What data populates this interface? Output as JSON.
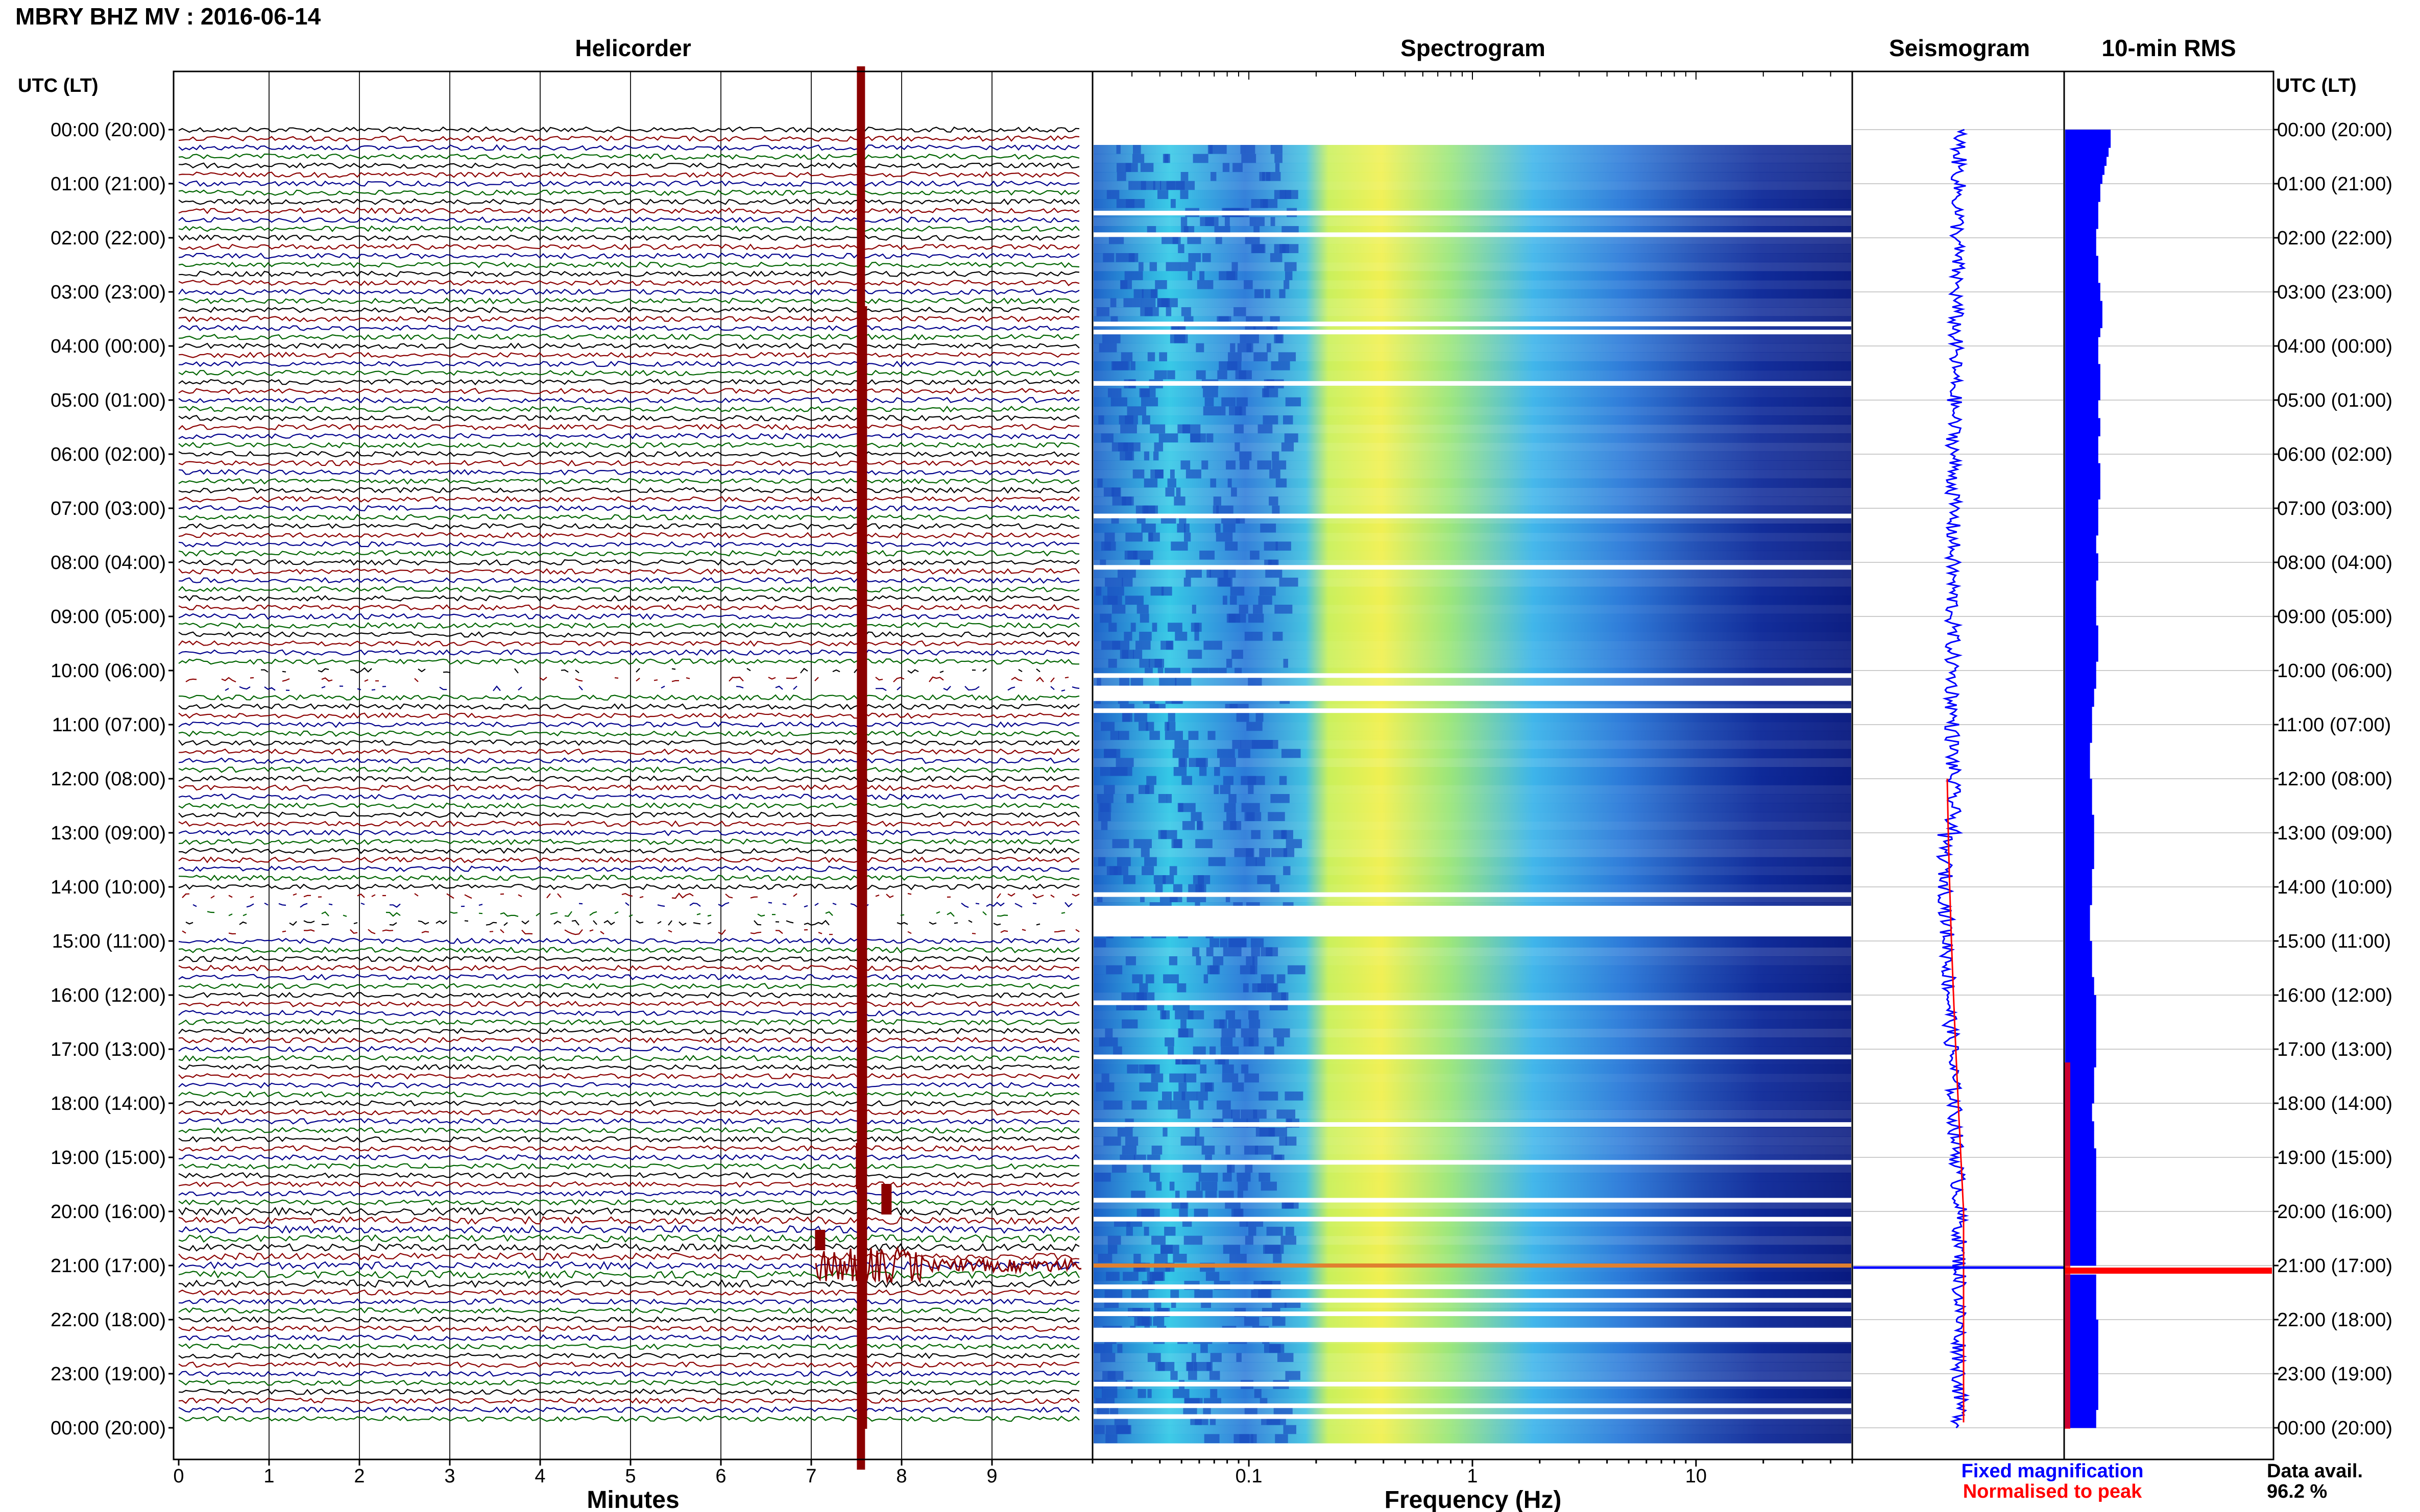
{
  "header": {
    "title": "MBRY BHZ MV : 2016-06-14"
  },
  "panels": {
    "helicorder": "Helicorder",
    "spectrogram": "Spectrogram",
    "seismogram": "Seismogram",
    "rms": "10-min RMS"
  },
  "axis_header_left": "UTC (LT)",
  "axis_header_right": "UTC (LT)",
  "time_labels": [
    "00:00 (20:00)",
    "01:00 (21:00)",
    "02:00 (22:00)",
    "03:00 (23:00)",
    "04:00 (00:00)",
    "05:00 (01:00)",
    "06:00 (02:00)",
    "07:00 (03:00)",
    "08:00 (04:00)",
    "09:00 (05:00)",
    "10:00 (06:00)",
    "11:00 (07:00)",
    "12:00 (08:00)",
    "13:00 (09:00)",
    "14:00 (10:00)",
    "15:00 (11:00)",
    "16:00 (12:00)",
    "17:00 (13:00)",
    "18:00 (14:00)",
    "19:00 (15:00)",
    "20:00 (16:00)",
    "21:00 (17:00)",
    "22:00 (18:00)",
    "23:00 (19:00)",
    "00:00 (20:00)"
  ],
  "x_labels": {
    "helicorder": "Minutes",
    "spectrogram": "Frequency (Hz)"
  },
  "minute_ticks": [
    "0",
    "1",
    "2",
    "3",
    "4",
    "5",
    "6",
    "7",
    "8",
    "9"
  ],
  "freq_ticks": [
    "0.1",
    "1",
    "10"
  ],
  "legend": {
    "fixed": "Fixed magnification",
    "normalised": "Normalised to peak",
    "fixed_color": "#0000ff",
    "normalised_color": "#ff0000"
  },
  "data_avail": {
    "label": "Data avail.",
    "value": "96.2 %"
  },
  "colors": {
    "trace_cycle": [
      "#000000",
      "#8b0000",
      "#00008b",
      "#006400"
    ],
    "event": "#8b0000",
    "spectro_low": "#0a1e8c",
    "spectro_mid": "#33c8e6",
    "spectro_high": "#f0f050",
    "rms_bar": "#0000ff",
    "rms_peak": "#ff0000"
  },
  "chart_data": [
    {
      "type": "line",
      "name": "Helicorder",
      "xlabel": "Minutes",
      "xlim": [
        0,
        10
      ],
      "ylabel": "UTC (LT)",
      "rows": 144,
      "row_minutes": 10,
      "event": {
        "time_utc": "20:57",
        "minute_in_row": 7.55,
        "note": "large event trace"
      },
      "gaps_utc": [
        "10:00-10:20",
        "14:10-14:50"
      ]
    },
    {
      "type": "heatmap",
      "name": "Spectrogram",
      "xlabel": "Frequency (Hz)",
      "xscale": "log",
      "xlim": [
        0.02,
        50
      ],
      "xticks": [
        0.1,
        1,
        10
      ],
      "peak_band_hz": [
        0.2,
        0.5
      ],
      "gaps_utc": [
        "14:10-14:50"
      ]
    },
    {
      "type": "line",
      "name": "Seismogram",
      "series": [
        {
          "name": "Fixed magnification",
          "color": "#0000ff"
        },
        {
          "name": "Normalised to peak",
          "color": "#ff0000"
        }
      ],
      "spike_utc": "21:00"
    },
    {
      "type": "bar",
      "name": "10-min RMS",
      "orientation": "horizontal",
      "peak_utc": "21:00",
      "values_relative": [
        0.22,
        0.22,
        0.21,
        0.2,
        0.19,
        0.18,
        0.17,
        0.17,
        0.16,
        0.16,
        0.16,
        0.15,
        0.15,
        0.15,
        0.16,
        0.16,
        0.16,
        0.17,
        0.17,
        0.18,
        0.18,
        0.18,
        0.17,
        0.16,
        0.16,
        0.16,
        0.17,
        0.17,
        0.17,
        0.17,
        0.16,
        0.16,
        0.17,
        0.17,
        0.16,
        0.16,
        0.16,
        0.17,
        0.17,
        0.17,
        0.17,
        0.16,
        0.16,
        0.16,
        0.16,
        0.15,
        0.15,
        0.16,
        0.16,
        0.16,
        0.15,
        0.15,
        0.15,
        0.15,
        0.15,
        0.16,
        0.16,
        0.16,
        0.16,
        0.15,
        0.15,
        0.15,
        0.14,
        0.14,
        0.13,
        0.13,
        0.13,
        0.13,
        0.12,
        0.12,
        0.12,
        0.12,
        0.13,
        0.13,
        0.13,
        0.13,
        0.14,
        0.14,
        0.14,
        0.14,
        0.14,
        0.14,
        0.13,
        0.13,
        0.13,
        0.13,
        0.12,
        0.12,
        0.12,
        0.12,
        0.13,
        0.13,
        0.13,
        0.13,
        0.14,
        0.14,
        0.15,
        0.15,
        0.15,
        0.15,
        0.15,
        0.15,
        0.15,
        0.15,
        0.14,
        0.14,
        0.14,
        0.14,
        0.13,
        0.13,
        0.14,
        0.14,
        0.14,
        0.15,
        0.15,
        0.15,
        0.15,
        0.15,
        0.15,
        0.15,
        0.15,
        0.15,
        0.15,
        0.15,
        0.15,
        0.15,
        1.0,
        0.15,
        0.15,
        0.15,
        0.15,
        0.15,
        0.16,
        0.16,
        0.16,
        0.16,
        0.16,
        0.16,
        0.16,
        0.16,
        0.16,
        0.16,
        0.15,
        0.15
      ]
    }
  ]
}
